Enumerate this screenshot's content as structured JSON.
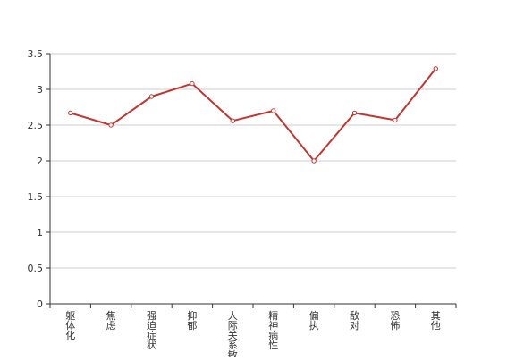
{
  "chart_data": {
    "type": "line",
    "title": "",
    "xlabel": "",
    "ylabel": "",
    "categories": [
      "躯体化",
      "焦虑",
      "强迫症状",
      "抑郁",
      "人际关系敏感",
      "精神病性",
      "偏执",
      "敌对",
      "恐怖",
      "其他"
    ],
    "series": [
      {
        "values": [
          2.67,
          2.5,
          2.9,
          3.08,
          2.56,
          2.7,
          2.0,
          2.67,
          2.57,
          3.29
        ],
        "color": "#c23531"
      }
    ],
    "ylim": [
      0,
      3.5
    ],
    "yticks": [
      "0",
      "0.5",
      "1",
      "1.5",
      "2",
      "2.5",
      "3",
      "3.5"
    ],
    "grid": true,
    "legend": "none"
  },
  "colors": {
    "line": "#c23531",
    "grid": "#cccccc",
    "axis": "#333333"
  }
}
